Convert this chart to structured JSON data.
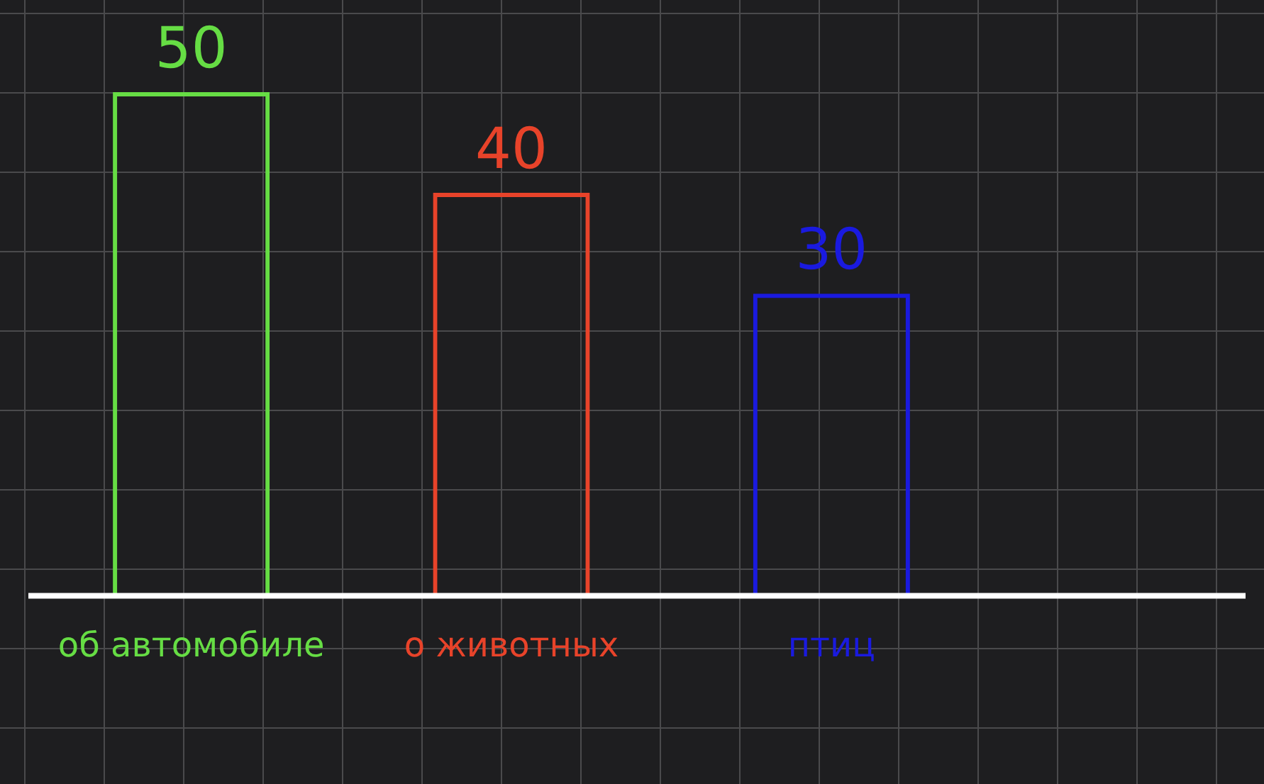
{
  "chart_data": {
    "type": "bar",
    "categories": [
      "об автомобиле",
      "о животных",
      "птиц"
    ],
    "values": [
      50,
      40,
      30
    ],
    "colors": [
      "#66dd44",
      "#e8432a",
      "#1a1adf"
    ],
    "data_labels": true,
    "grid": false,
    "legend": false,
    "tick_labels": "x"
  }
}
